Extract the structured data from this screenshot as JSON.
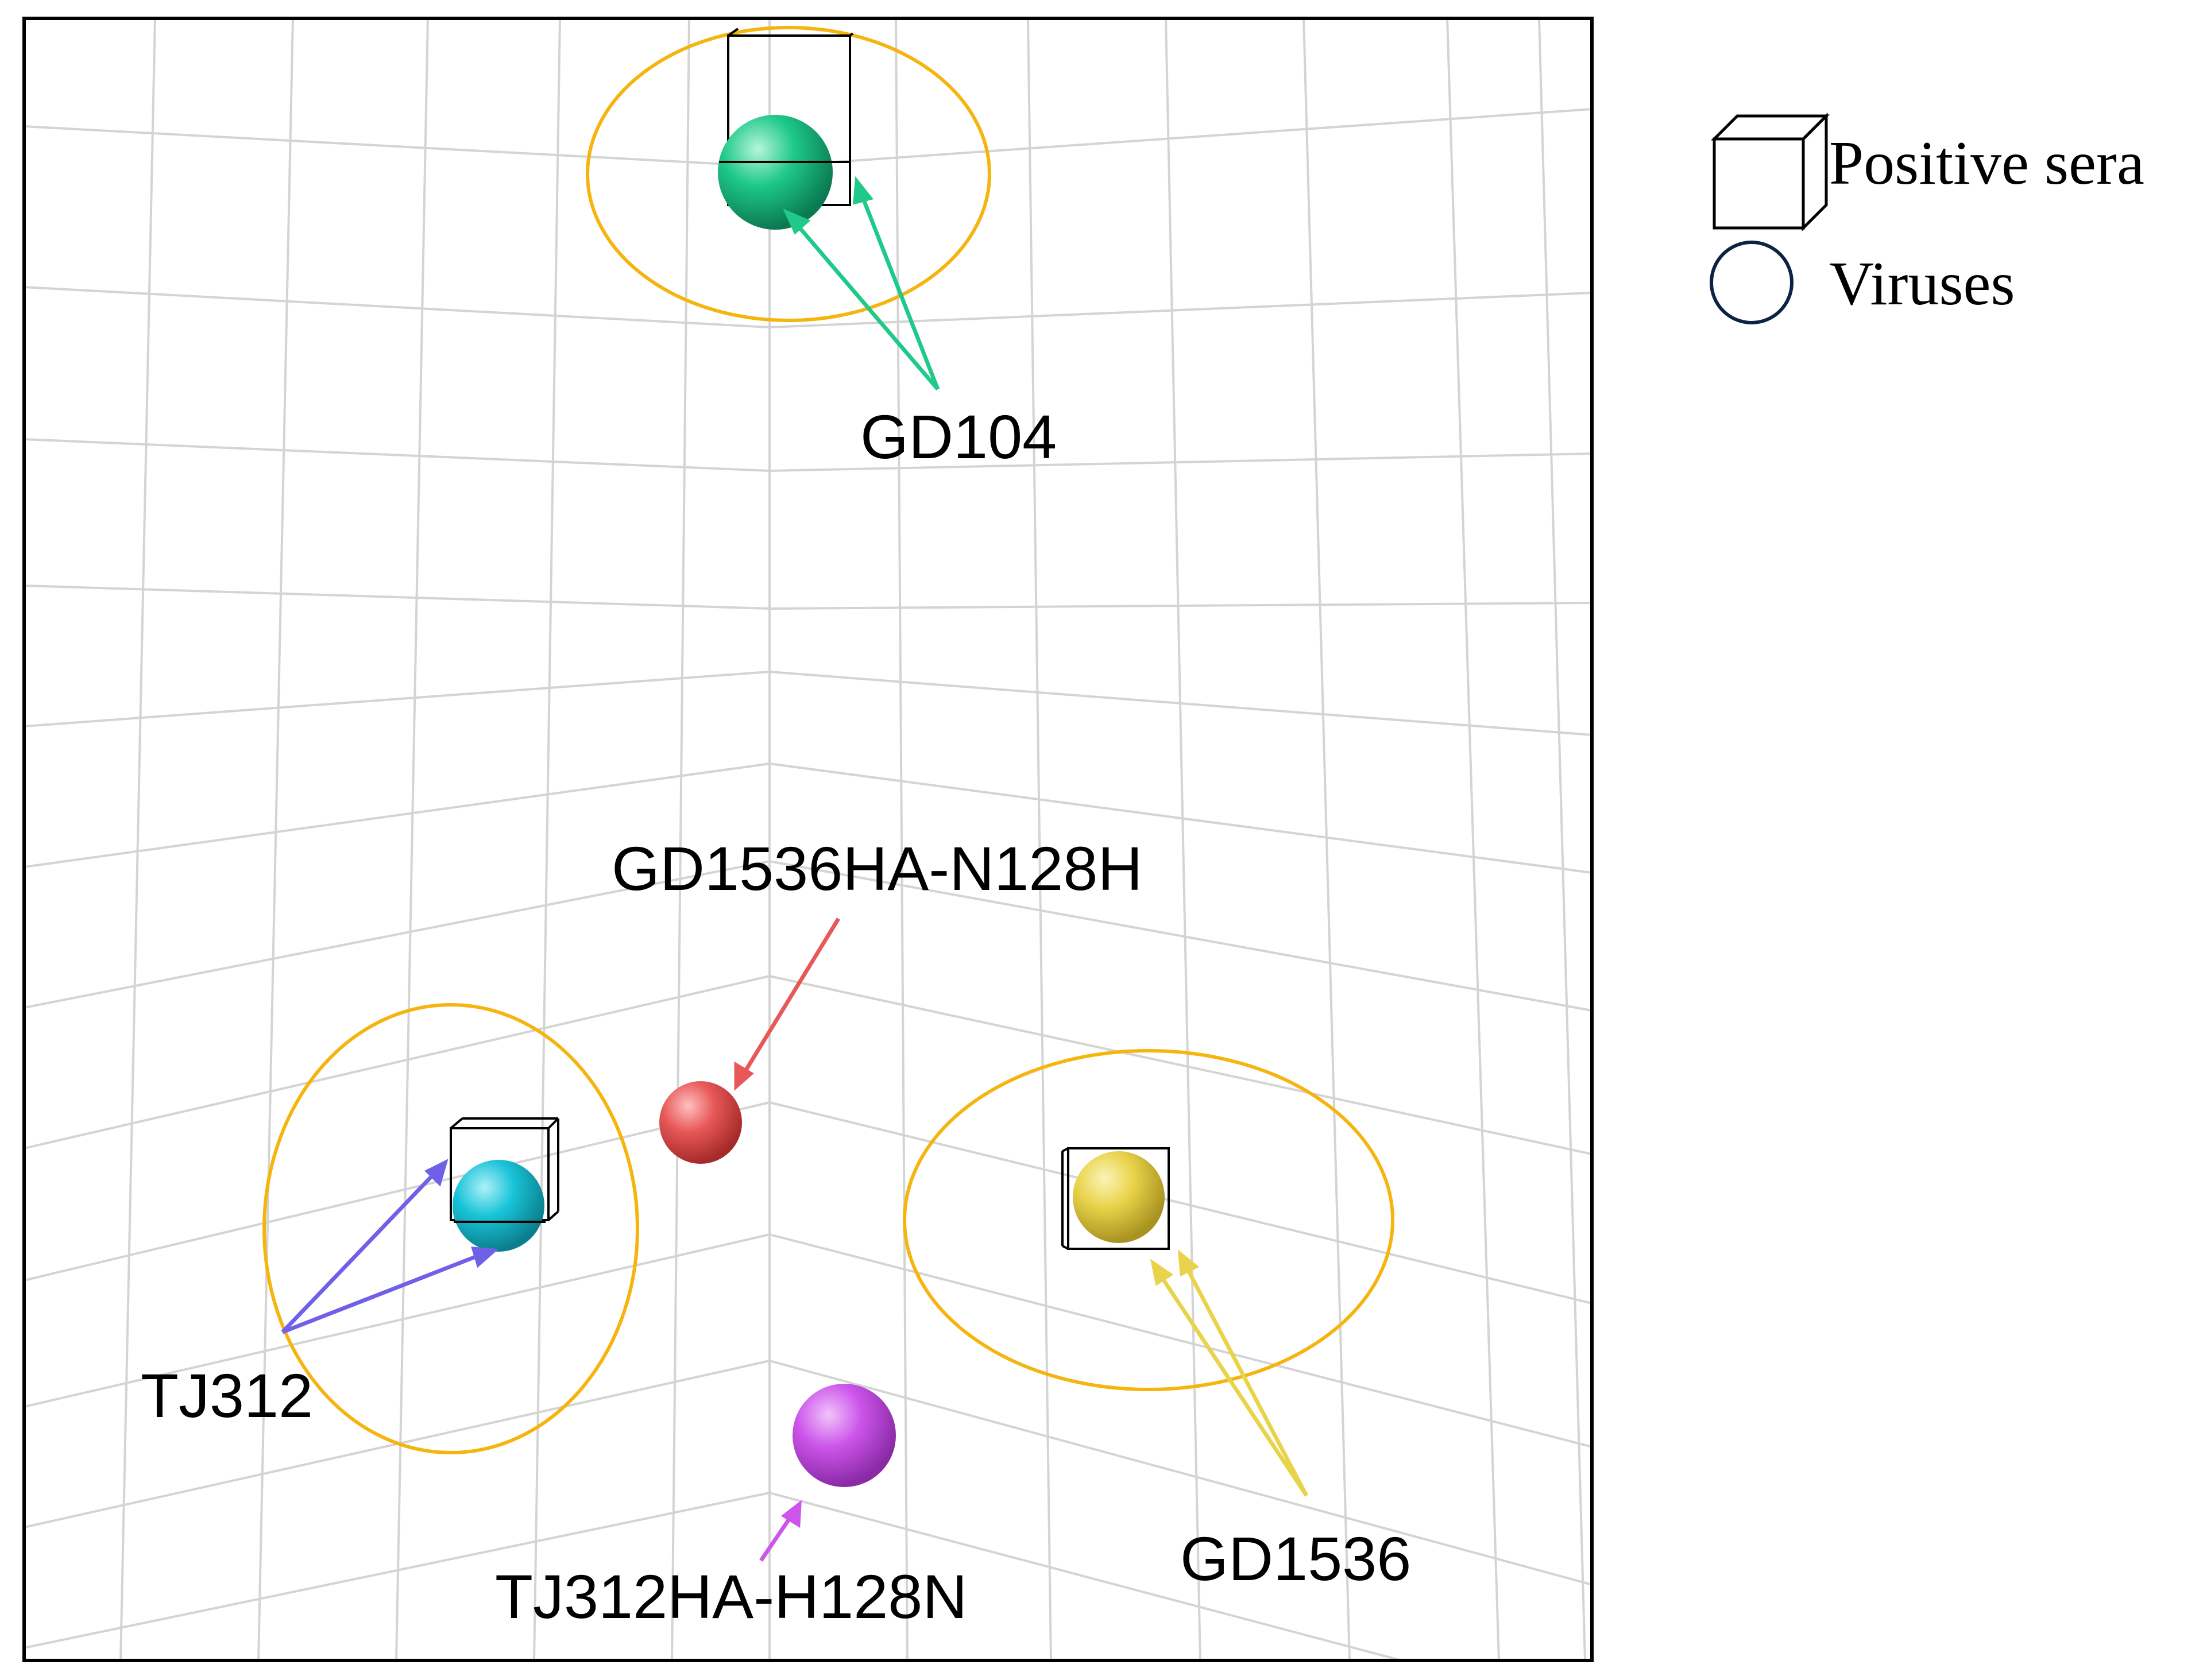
{
  "legend": {
    "sera_label": "Positive sera",
    "viruses_label": "Viruses",
    "sera_icon": "cube-icon",
    "viruses_icon": "circle-icon",
    "viruses_icon_color": "#0d2244"
  },
  "labels": {
    "gd104": "GD104",
    "gd1536": "GD1536",
    "tj312": "TJ312",
    "gd1536_mutant": "GD1536HA-N128H",
    "tj312_mutant": "TJ312HA-H128N"
  },
  "colors": {
    "cluster_ellipse": "#f5b40e",
    "gd104": "#1ec98a",
    "gd1536": "#e9d34a",
    "tj312": "#19c4d8",
    "tj312_arrow": "#7060e8",
    "gd1536_mutant": "#e85858",
    "tj312_mutant": "#cc55ea",
    "grid": "#d4d4d4",
    "frame": "#000000"
  }
}
